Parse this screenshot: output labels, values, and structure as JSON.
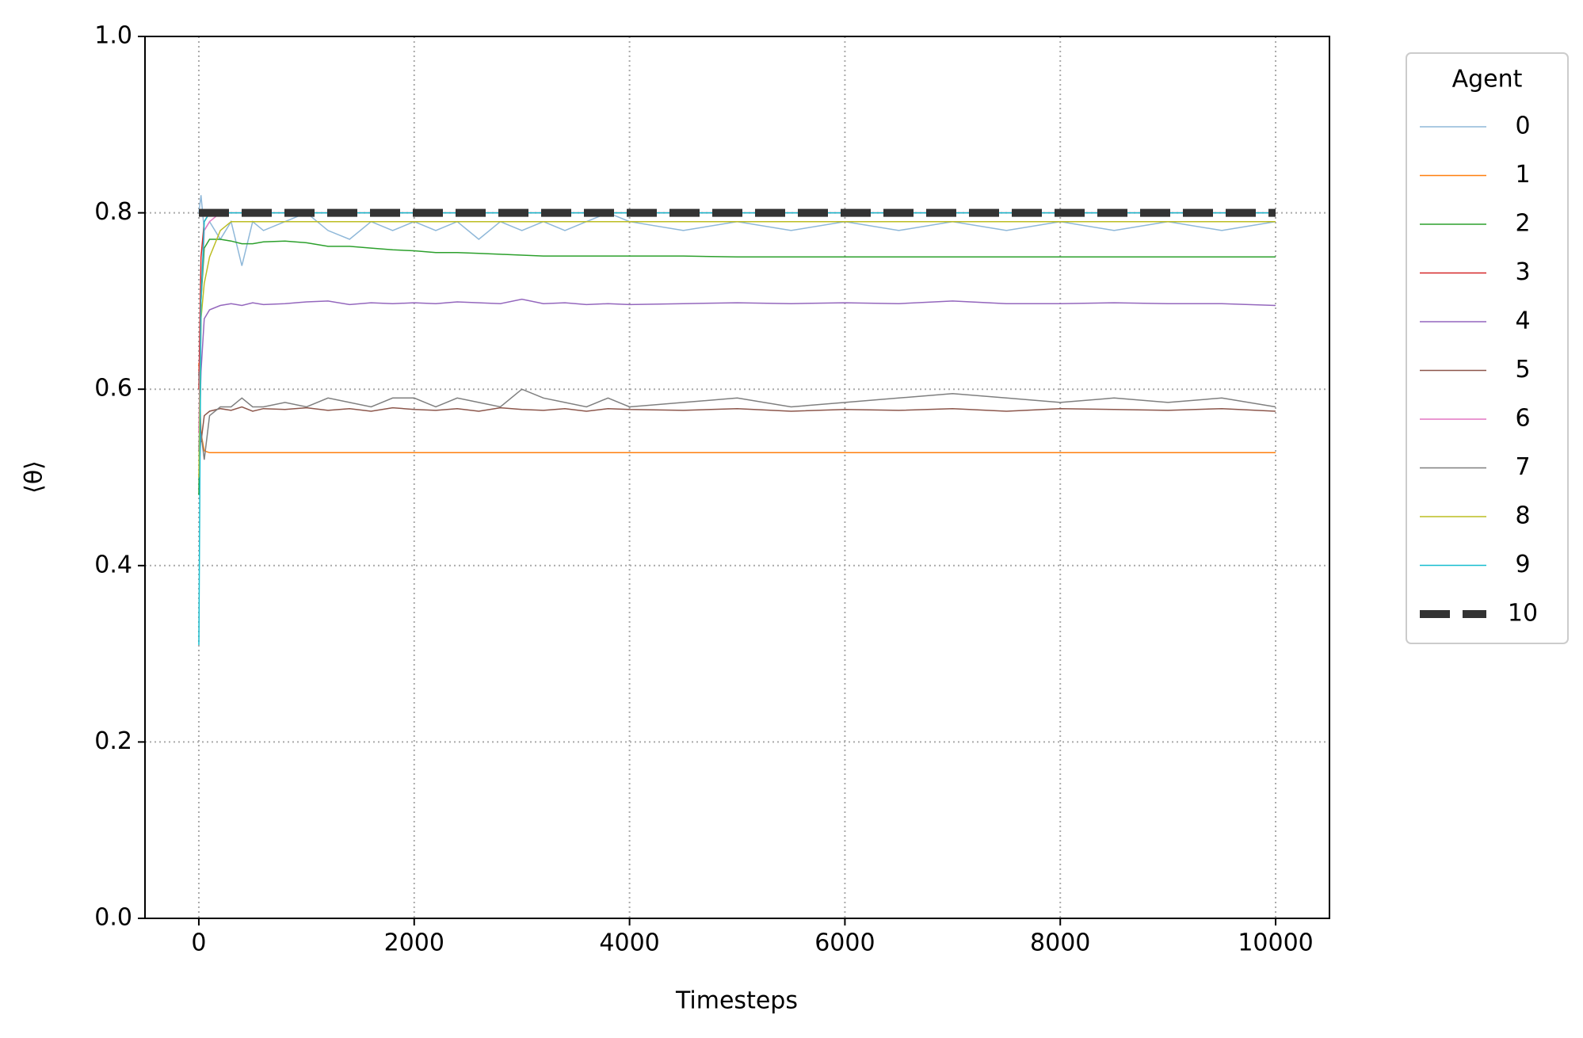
{
  "chart_data": {
    "type": "line",
    "xlabel": "Timesteps",
    "ylabel": "⟨θ⟩",
    "xlim": [
      -500,
      10500
    ],
    "ylim": [
      0,
      1
    ],
    "xticks": [
      0,
      2000,
      4000,
      6000,
      8000,
      10000
    ],
    "yticks": [
      {
        "value": 0,
        "label": "0.0"
      },
      0.2,
      0.4,
      0.6,
      0.8,
      {
        "value": 1,
        "label": "1.0"
      }
    ],
    "grid": true,
    "legend_title": "Agent",
    "legend_position": "outside-right",
    "x": [
      0,
      20,
      50,
      100,
      200,
      300,
      400,
      500,
      600,
      800,
      1000,
      1200,
      1400,
      1600,
      1800,
      2000,
      2200,
      2400,
      2600,
      2800,
      3000,
      3200,
      3400,
      3600,
      3800,
      4000,
      4500,
      5000,
      5500,
      6000,
      6500,
      7000,
      7500,
      8000,
      8500,
      9000,
      9500,
      10000
    ],
    "series": [
      {
        "name": "0",
        "color": "#8fb8d9",
        "values": [
          0.8,
          0.82,
          0.78,
          0.79,
          0.77,
          0.79,
          0.74,
          0.79,
          0.78,
          0.79,
          0.8,
          0.78,
          0.77,
          0.79,
          0.78,
          0.79,
          0.78,
          0.79,
          0.77,
          0.79,
          0.78,
          0.79,
          0.78,
          0.79,
          0.8,
          0.79,
          0.78,
          0.79,
          0.78,
          0.79,
          0.78,
          0.79,
          0.78,
          0.79,
          0.78,
          0.79,
          0.78,
          0.79
        ]
      },
      {
        "name": "1",
        "color": "#ff7f0e",
        "values": [
          0.63,
          0.55,
          0.53,
          0.528,
          0.528,
          0.528,
          0.528,
          0.528,
          0.528,
          0.528,
          0.528,
          0.528,
          0.528,
          0.528,
          0.528,
          0.528,
          0.528,
          0.528,
          0.528,
          0.528,
          0.528,
          0.528,
          0.528,
          0.528,
          0.528,
          0.528,
          0.528,
          0.528,
          0.528,
          0.528,
          0.528,
          0.528,
          0.528,
          0.528,
          0.528,
          0.528,
          0.528,
          0.528
        ]
      },
      {
        "name": "2",
        "color": "#2ca02c",
        "values": [
          0.48,
          0.7,
          0.76,
          0.77,
          0.77,
          0.768,
          0.765,
          0.765,
          0.767,
          0.768,
          0.766,
          0.762,
          0.762,
          0.76,
          0.758,
          0.757,
          0.755,
          0.755,
          0.754,
          0.753,
          0.752,
          0.751,
          0.751,
          0.751,
          0.751,
          0.751,
          0.751,
          0.75,
          0.75,
          0.75,
          0.75,
          0.75,
          0.75,
          0.75,
          0.75,
          0.75,
          0.75,
          0.75
        ]
      },
      {
        "name": "3",
        "color": "#d62728",
        "values": [
          0.6,
          0.75,
          0.79,
          0.8,
          0.8,
          0.8,
          0.8,
          0.8,
          0.8,
          0.8,
          0.8,
          0.8,
          0.8,
          0.8,
          0.8,
          0.8,
          0.8,
          0.8,
          0.8,
          0.8,
          0.8,
          0.8,
          0.8,
          0.8,
          0.8,
          0.8,
          0.8,
          0.8,
          0.8,
          0.8,
          0.8,
          0.8,
          0.8,
          0.8,
          0.8,
          0.8,
          0.8,
          0.8
        ]
      },
      {
        "name": "4",
        "color": "#9467bd",
        "values": [
          0.53,
          0.62,
          0.68,
          0.69,
          0.695,
          0.697,
          0.695,
          0.698,
          0.696,
          0.697,
          0.699,
          0.7,
          0.696,
          0.698,
          0.697,
          0.698,
          0.697,
          0.699,
          0.698,
          0.697,
          0.702,
          0.697,
          0.698,
          0.696,
          0.697,
          0.696,
          0.697,
          0.698,
          0.697,
          0.698,
          0.697,
          0.7,
          0.697,
          0.697,
          0.698,
          0.697,
          0.697,
          0.695
        ]
      },
      {
        "name": "5",
        "color": "#8c564b",
        "values": [
          0.62,
          0.54,
          0.57,
          0.575,
          0.578,
          0.576,
          0.58,
          0.575,
          0.578,
          0.577,
          0.579,
          0.576,
          0.578,
          0.575,
          0.579,
          0.577,
          0.576,
          0.578,
          0.575,
          0.579,
          0.577,
          0.576,
          0.578,
          0.575,
          0.578,
          0.577,
          0.576,
          0.578,
          0.575,
          0.577,
          0.576,
          0.578,
          0.575,
          0.578,
          0.577,
          0.576,
          0.578,
          0.575
        ]
      },
      {
        "name": "6",
        "color": "#e377c2",
        "values": [
          0.55,
          0.7,
          0.78,
          0.79,
          0.8,
          0.8,
          0.8,
          0.8,
          0.8,
          0.8,
          0.8,
          0.8,
          0.8,
          0.8,
          0.8,
          0.8,
          0.8,
          0.8,
          0.8,
          0.8,
          0.8,
          0.8,
          0.8,
          0.8,
          0.8,
          0.8,
          0.8,
          0.8,
          0.8,
          0.8,
          0.8,
          0.8,
          0.8,
          0.8,
          0.8,
          0.8,
          0.8,
          0.8
        ]
      },
      {
        "name": "7",
        "color": "#7f7f7f",
        "values": [
          0.5,
          0.55,
          0.52,
          0.57,
          0.58,
          0.58,
          0.59,
          0.58,
          0.58,
          0.585,
          0.58,
          0.59,
          0.585,
          0.58,
          0.59,
          0.59,
          0.58,
          0.59,
          0.585,
          0.58,
          0.6,
          0.59,
          0.585,
          0.58,
          0.59,
          0.58,
          0.585,
          0.59,
          0.58,
          0.585,
          0.59,
          0.595,
          0.59,
          0.585,
          0.59,
          0.585,
          0.59,
          0.58
        ]
      },
      {
        "name": "8",
        "color": "#bcbd22",
        "values": [
          0.5,
          0.68,
          0.72,
          0.75,
          0.78,
          0.79,
          0.79,
          0.79,
          0.79,
          0.79,
          0.79,
          0.79,
          0.79,
          0.79,
          0.79,
          0.79,
          0.79,
          0.79,
          0.79,
          0.79,
          0.79,
          0.79,
          0.79,
          0.79,
          0.79,
          0.79,
          0.79,
          0.79,
          0.79,
          0.79,
          0.79,
          0.79,
          0.79,
          0.79,
          0.79,
          0.79,
          0.79,
          0.79
        ]
      },
      {
        "name": "9",
        "color": "#17becf",
        "values": [
          0.31,
          0.7,
          0.79,
          0.8,
          0.8,
          0.8,
          0.8,
          0.8,
          0.8,
          0.8,
          0.8,
          0.8,
          0.8,
          0.8,
          0.8,
          0.8,
          0.8,
          0.8,
          0.8,
          0.8,
          0.8,
          0.8,
          0.8,
          0.8,
          0.8,
          0.8,
          0.8,
          0.8,
          0.8,
          0.8,
          0.8,
          0.8,
          0.8,
          0.8,
          0.8,
          0.8,
          0.8,
          0.8
        ]
      },
      {
        "name": "10",
        "color": "#333333",
        "linestyle": "dashed",
        "values": [
          0.8,
          0.8,
          0.8,
          0.8,
          0.8,
          0.8,
          0.8,
          0.8,
          0.8,
          0.8,
          0.8,
          0.8,
          0.8,
          0.8,
          0.8,
          0.8,
          0.8,
          0.8,
          0.8,
          0.8,
          0.8,
          0.8,
          0.8,
          0.8,
          0.8,
          0.8,
          0.8,
          0.8,
          0.8,
          0.8,
          0.8,
          0.8,
          0.8,
          0.8,
          0.8,
          0.8,
          0.8,
          0.8
        ]
      }
    ]
  }
}
